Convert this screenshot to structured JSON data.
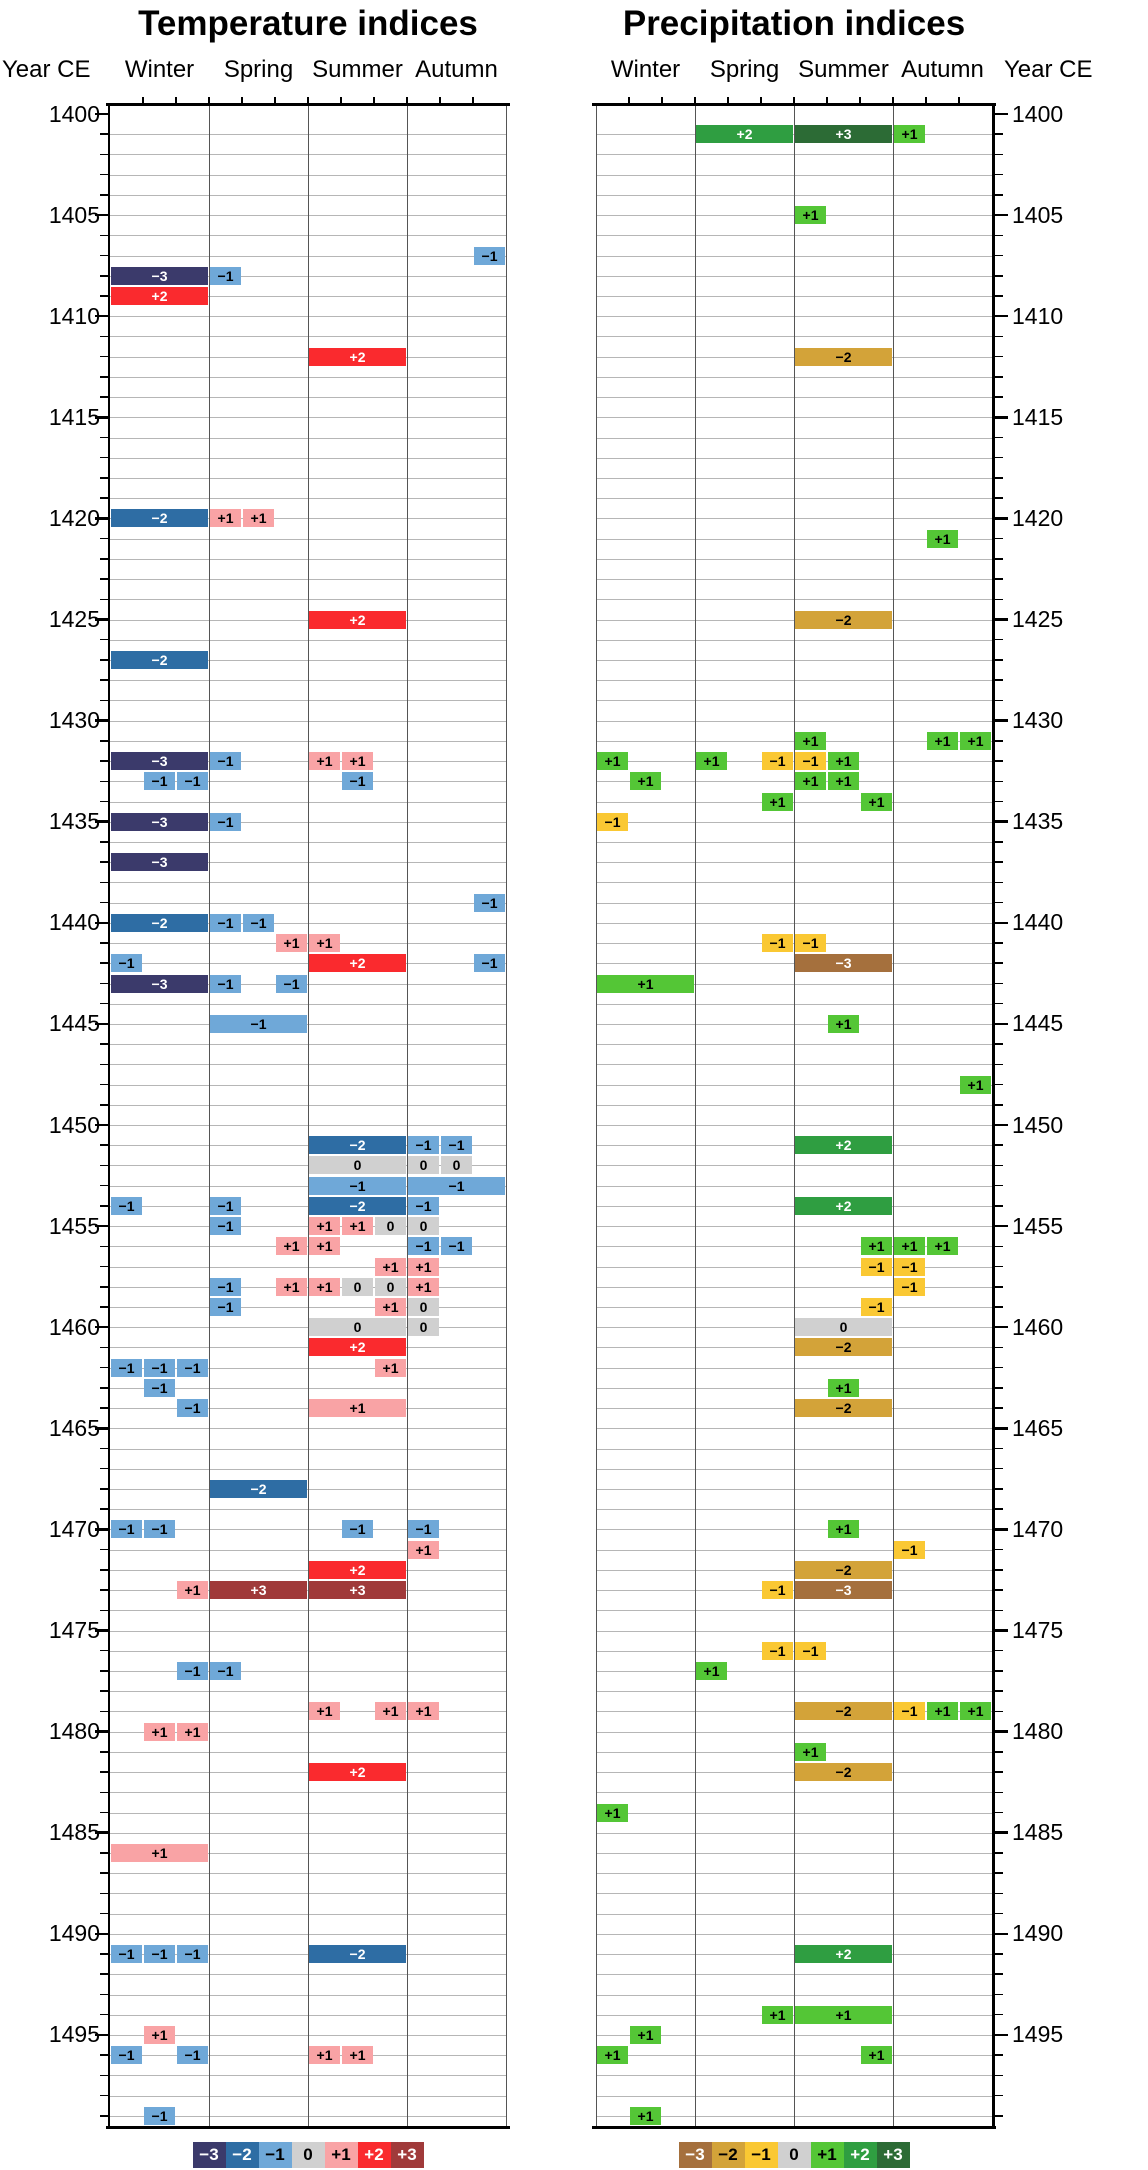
{
  "titles": {
    "left": "Temperature indices",
    "right": "Precipitation indices"
  },
  "axis": {
    "year_label": "Year CE",
    "season_headers": [
      "Winter",
      "Spring",
      "Summer",
      "Autumn"
    ],
    "year_start": 1400,
    "year_end": 1499,
    "label_step": 5,
    "year_tick_labels": [
      1400,
      1405,
      1410,
      1415,
      1420,
      1425,
      1430,
      1435,
      1440,
      1445,
      1450,
      1455,
      1460,
      1465,
      1470,
      1475,
      1480,
      1485,
      1490,
      1495
    ]
  },
  "legend": {
    "labels": [
      "−3",
      "−2",
      "−1",
      "0",
      "+1",
      "+2",
      "+3"
    ],
    "values": [
      -3,
      -2,
      -1,
      0,
      1,
      2,
      3
    ]
  },
  "chart_data": {
    "type": "heatmap",
    "title": "Seasonal temperature and precipitation indices 1400-1499 CE",
    "x_unit": "month cell within year: 0=Dec,1=Jan,2=Feb (Winter) | 3=Mar,4=Apr,5=May (Spring) | 6=Jun,7=Jul,8=Aug (Summer) | 9=Sep,10=Oct,11=Nov (Autumn)",
    "cell_format": "[start_cell, width_in_cells, index_value]",
    "index_range": [
      -3,
      3
    ],
    "temperature_colors": {
      "-3": "#3b3a6b",
      "-2": "#2e6da4",
      "-1": "#6fa8d8",
      "0": "#d0d0d0",
      "1": "#f9a3a5",
      "2": "#fa2a2e",
      "3": "#a03a3a"
    },
    "precipitation_colors": {
      "-3": "#a5703d",
      "-2": "#d3a339",
      "-1": "#fac833",
      "0": "#d0d0d0",
      "1": "#54c636",
      "2": "#2f9e41",
      "3": "#2c6b35"
    },
    "temperature_white_text": [
      -3,
      -2,
      2,
      3
    ],
    "precipitation_white_text": [
      -3,
      2,
      3
    ],
    "temperature": [
      {
        "year": 1407,
        "cells": [
          [
            11,
            1,
            -1
          ]
        ]
      },
      {
        "year": 1408,
        "cells": [
          [
            0,
            3,
            -3
          ],
          [
            3,
            1,
            -1
          ]
        ]
      },
      {
        "year": 1409,
        "cells": [
          [
            0,
            3,
            2
          ]
        ]
      },
      {
        "year": 1412,
        "cells": [
          [
            6,
            3,
            2
          ]
        ]
      },
      {
        "year": 1420,
        "cells": [
          [
            0,
            3,
            -2
          ],
          [
            3,
            1,
            1
          ],
          [
            4,
            1,
            1
          ]
        ]
      },
      {
        "year": 1425,
        "cells": [
          [
            6,
            3,
            2
          ]
        ]
      },
      {
        "year": 1427,
        "cells": [
          [
            0,
            3,
            -2
          ]
        ]
      },
      {
        "year": 1432,
        "cells": [
          [
            0,
            3,
            -3
          ],
          [
            3,
            1,
            -1
          ],
          [
            6,
            1,
            1
          ],
          [
            7,
            1,
            1
          ]
        ]
      },
      {
        "year": 1433,
        "cells": [
          [
            1,
            1,
            -1
          ],
          [
            2,
            1,
            -1
          ],
          [
            7,
            1,
            -1
          ]
        ]
      },
      {
        "year": 1435,
        "cells": [
          [
            0,
            3,
            -3
          ],
          [
            3,
            1,
            -1
          ]
        ]
      },
      {
        "year": 1437,
        "cells": [
          [
            0,
            3,
            -3
          ]
        ]
      },
      {
        "year": 1439,
        "cells": [
          [
            11,
            1,
            -1
          ]
        ]
      },
      {
        "year": 1440,
        "cells": [
          [
            0,
            3,
            -2
          ],
          [
            3,
            1,
            -1
          ],
          [
            4,
            1,
            -1
          ]
        ]
      },
      {
        "year": 1441,
        "cells": [
          [
            5,
            1,
            1
          ],
          [
            6,
            1,
            1
          ]
        ]
      },
      {
        "year": 1442,
        "cells": [
          [
            0,
            1,
            -1
          ],
          [
            6,
            3,
            2
          ],
          [
            11,
            1,
            -1
          ]
        ]
      },
      {
        "year": 1443,
        "cells": [
          [
            0,
            3,
            -3
          ],
          [
            3,
            1,
            -1
          ],
          [
            5,
            1,
            -1
          ]
        ]
      },
      {
        "year": 1445,
        "cells": [
          [
            3,
            3,
            -1
          ]
        ]
      },
      {
        "year": 1451,
        "cells": [
          [
            6,
            3,
            -2
          ],
          [
            9,
            1,
            -1
          ],
          [
            10,
            1,
            -1
          ]
        ]
      },
      {
        "year": 1452,
        "cells": [
          [
            6,
            3,
            0
          ],
          [
            9,
            1,
            0
          ],
          [
            10,
            1,
            0
          ]
        ]
      },
      {
        "year": 1453,
        "cells": [
          [
            6,
            3,
            -1
          ],
          [
            9,
            3,
            -1
          ]
        ]
      },
      {
        "year": 1454,
        "cells": [
          [
            0,
            1,
            -1
          ],
          [
            3,
            1,
            -1
          ],
          [
            6,
            3,
            -2
          ],
          [
            9,
            1,
            -1
          ]
        ]
      },
      {
        "year": 1455,
        "cells": [
          [
            3,
            1,
            -1
          ],
          [
            6,
            1,
            1
          ],
          [
            7,
            1,
            1
          ],
          [
            8,
            1,
            0
          ],
          [
            9,
            1,
            0
          ]
        ]
      },
      {
        "year": 1456,
        "cells": [
          [
            5,
            1,
            1
          ],
          [
            6,
            1,
            1
          ],
          [
            9,
            1,
            -1
          ],
          [
            10,
            1,
            -1
          ]
        ]
      },
      {
        "year": 1457,
        "cells": [
          [
            8,
            1,
            1
          ],
          [
            9,
            1,
            1
          ]
        ]
      },
      {
        "year": 1458,
        "cells": [
          [
            3,
            1,
            -1
          ],
          [
            5,
            1,
            1
          ],
          [
            6,
            1,
            1
          ],
          [
            7,
            1,
            0
          ],
          [
            8,
            1,
            0
          ],
          [
            9,
            1,
            1
          ]
        ]
      },
      {
        "year": 1459,
        "cells": [
          [
            3,
            1,
            -1
          ],
          [
            8,
            1,
            1
          ],
          [
            9,
            1,
            0
          ]
        ]
      },
      {
        "year": 1460,
        "cells": [
          [
            6,
            3,
            0
          ],
          [
            9,
            1,
            0
          ]
        ]
      },
      {
        "year": 1461,
        "cells": [
          [
            6,
            3,
            2
          ]
        ]
      },
      {
        "year": 1462,
        "cells": [
          [
            0,
            1,
            -1
          ],
          [
            1,
            1,
            -1
          ],
          [
            2,
            1,
            -1
          ],
          [
            8,
            1,
            1
          ]
        ]
      },
      {
        "year": 1463,
        "cells": [
          [
            1,
            1,
            -1
          ]
        ]
      },
      {
        "year": 1464,
        "cells": [
          [
            2,
            1,
            -1
          ],
          [
            6,
            3,
            1
          ]
        ]
      },
      {
        "year": 1468,
        "cells": [
          [
            3,
            3,
            -2
          ]
        ]
      },
      {
        "year": 1470,
        "cells": [
          [
            0,
            1,
            -1
          ],
          [
            1,
            1,
            -1
          ],
          [
            7,
            1,
            -1
          ],
          [
            9,
            1,
            -1
          ]
        ]
      },
      {
        "year": 1471,
        "cells": [
          [
            9,
            1,
            1
          ]
        ]
      },
      {
        "year": 1472,
        "cells": [
          [
            6,
            3,
            2
          ]
        ]
      },
      {
        "year": 1473,
        "cells": [
          [
            2,
            1,
            1
          ],
          [
            3,
            3,
            3
          ],
          [
            6,
            3,
            3
          ]
        ]
      },
      {
        "year": 1477,
        "cells": [
          [
            2,
            1,
            -1
          ],
          [
            3,
            1,
            -1
          ]
        ]
      },
      {
        "year": 1479,
        "cells": [
          [
            6,
            1,
            1
          ],
          [
            8,
            1,
            1
          ],
          [
            9,
            1,
            1
          ]
        ]
      },
      {
        "year": 1480,
        "cells": [
          [
            1,
            1,
            1
          ],
          [
            2,
            1,
            1
          ]
        ]
      },
      {
        "year": 1482,
        "cells": [
          [
            6,
            3,
            2
          ]
        ]
      },
      {
        "year": 1486,
        "cells": [
          [
            0,
            3,
            1
          ]
        ]
      },
      {
        "year": 1491,
        "cells": [
          [
            0,
            1,
            -1
          ],
          [
            1,
            1,
            -1
          ],
          [
            2,
            1,
            -1
          ],
          [
            6,
            3,
            -2
          ]
        ]
      },
      {
        "year": 1495,
        "cells": [
          [
            1,
            1,
            1
          ]
        ]
      },
      {
        "year": 1496,
        "cells": [
          [
            0,
            1,
            -1
          ],
          [
            2,
            1,
            -1
          ],
          [
            6,
            1,
            1
          ],
          [
            7,
            1,
            1
          ]
        ]
      },
      {
        "year": 1499,
        "cells": [
          [
            1,
            1,
            -1
          ]
        ]
      }
    ],
    "precipitation": [
      {
        "year": 1401,
        "cells": [
          [
            3,
            3,
            2
          ],
          [
            6,
            3,
            3
          ],
          [
            9,
            1,
            1
          ]
        ]
      },
      {
        "year": 1405,
        "cells": [
          [
            6,
            1,
            1
          ]
        ]
      },
      {
        "year": 1412,
        "cells": [
          [
            6,
            3,
            -2
          ]
        ]
      },
      {
        "year": 1421,
        "cells": [
          [
            10,
            1,
            1
          ]
        ]
      },
      {
        "year": 1425,
        "cells": [
          [
            6,
            3,
            -2
          ]
        ]
      },
      {
        "year": 1431,
        "cells": [
          [
            6,
            1,
            1
          ],
          [
            10,
            1,
            1
          ],
          [
            11,
            1,
            1
          ]
        ]
      },
      {
        "year": 1432,
        "cells": [
          [
            0,
            1,
            1
          ],
          [
            3,
            1,
            1
          ],
          [
            5,
            1,
            -1
          ],
          [
            6,
            1,
            -1
          ],
          [
            7,
            1,
            1
          ]
        ]
      },
      {
        "year": 1433,
        "cells": [
          [
            1,
            1,
            1
          ],
          [
            6,
            1,
            1
          ],
          [
            7,
            1,
            1
          ]
        ]
      },
      {
        "year": 1434,
        "cells": [
          [
            5,
            1,
            1
          ],
          [
            8,
            1,
            1
          ]
        ]
      },
      {
        "year": 1435,
        "cells": [
          [
            0,
            1,
            -1
          ]
        ]
      },
      {
        "year": 1441,
        "cells": [
          [
            5,
            1,
            -1
          ],
          [
            6,
            1,
            -1
          ]
        ]
      },
      {
        "year": 1442,
        "cells": [
          [
            6,
            3,
            -3
          ]
        ]
      },
      {
        "year": 1443,
        "cells": [
          [
            0,
            3,
            1
          ]
        ]
      },
      {
        "year": 1445,
        "cells": [
          [
            7,
            1,
            1
          ]
        ]
      },
      {
        "year": 1448,
        "cells": [
          [
            11,
            1,
            1
          ]
        ]
      },
      {
        "year": 1451,
        "cells": [
          [
            6,
            3,
            2
          ]
        ]
      },
      {
        "year": 1454,
        "cells": [
          [
            6,
            3,
            2
          ]
        ]
      },
      {
        "year": 1456,
        "cells": [
          [
            8,
            1,
            1
          ],
          [
            9,
            1,
            1
          ],
          [
            10,
            1,
            1
          ]
        ]
      },
      {
        "year": 1457,
        "cells": [
          [
            8,
            1,
            -1
          ],
          [
            9,
            1,
            -1
          ]
        ]
      },
      {
        "year": 1458,
        "cells": [
          [
            9,
            1,
            -1
          ]
        ]
      },
      {
        "year": 1459,
        "cells": [
          [
            8,
            1,
            -1
          ]
        ]
      },
      {
        "year": 1460,
        "cells": [
          [
            6,
            3,
            0
          ]
        ]
      },
      {
        "year": 1461,
        "cells": [
          [
            6,
            3,
            -2
          ]
        ]
      },
      {
        "year": 1463,
        "cells": [
          [
            7,
            1,
            1
          ]
        ]
      },
      {
        "year": 1464,
        "cells": [
          [
            6,
            3,
            -2
          ]
        ]
      },
      {
        "year": 1470,
        "cells": [
          [
            7,
            1,
            1
          ]
        ]
      },
      {
        "year": 1471,
        "cells": [
          [
            9,
            1,
            -1
          ]
        ]
      },
      {
        "year": 1472,
        "cells": [
          [
            6,
            3,
            -2
          ]
        ]
      },
      {
        "year": 1473,
        "cells": [
          [
            5,
            1,
            -1
          ],
          [
            6,
            3,
            -3
          ]
        ]
      },
      {
        "year": 1476,
        "cells": [
          [
            5,
            1,
            -1
          ],
          [
            6,
            1,
            -1
          ]
        ]
      },
      {
        "year": 1477,
        "cells": [
          [
            3,
            1,
            1
          ]
        ]
      },
      {
        "year": 1479,
        "cells": [
          [
            6,
            3,
            -2
          ],
          [
            9,
            1,
            -1
          ],
          [
            10,
            1,
            1
          ],
          [
            11,
            1,
            1
          ]
        ]
      },
      {
        "year": 1481,
        "cells": [
          [
            6,
            1,
            1
          ]
        ]
      },
      {
        "year": 1482,
        "cells": [
          [
            6,
            3,
            -2
          ]
        ]
      },
      {
        "year": 1484,
        "cells": [
          [
            0,
            1,
            1
          ]
        ]
      },
      {
        "year": 1491,
        "cells": [
          [
            6,
            3,
            2
          ]
        ]
      },
      {
        "year": 1494,
        "cells": [
          [
            5,
            1,
            1
          ],
          [
            6,
            3,
            1
          ]
        ]
      },
      {
        "year": 1495,
        "cells": [
          [
            1,
            1,
            1
          ]
        ]
      },
      {
        "year": 1496,
        "cells": [
          [
            0,
            1,
            1
          ],
          [
            8,
            1,
            1
          ]
        ]
      },
      {
        "year": 1499,
        "cells": [
          [
            1,
            1,
            1
          ]
        ]
      }
    ]
  }
}
